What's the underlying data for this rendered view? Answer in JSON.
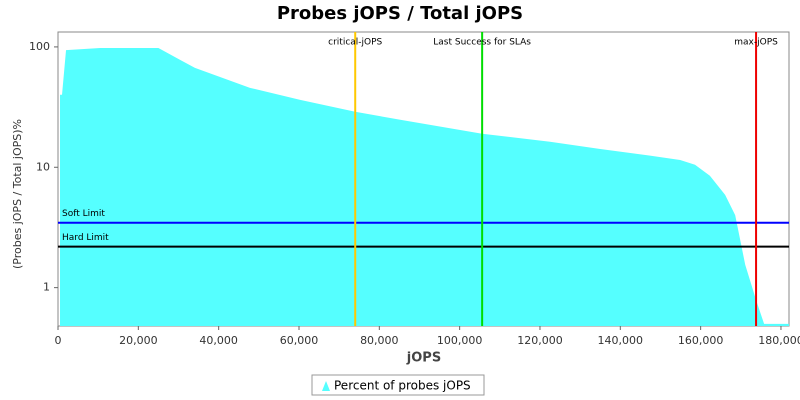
{
  "chart_data": {
    "type": "area",
    "title": "Probes jOPS / Total jOPS",
    "x_label": "jOPS",
    "y_label": "(Probes jOPS / Total jOPS)%",
    "log_y": true,
    "xlim": [
      0,
      182000
    ],
    "ylim": [
      0.48,
      133
    ],
    "xticks": [
      {
        "value": 0,
        "label": "0"
      },
      {
        "value": 20000,
        "label": "20,000"
      },
      {
        "value": 40000,
        "label": "40,000"
      },
      {
        "value": 60000,
        "label": "60,000"
      },
      {
        "value": 80000,
        "label": "80,000"
      },
      {
        "value": 100000,
        "label": "100,000"
      },
      {
        "value": 120000,
        "label": "120,000"
      },
      {
        "value": 140000,
        "label": "140,000"
      },
      {
        "value": 160000,
        "label": "160,000"
      },
      {
        "value": 180000,
        "label": "180,000"
      }
    ],
    "yticks": [
      1,
      10,
      100
    ],
    "series": [
      {
        "name": "Percent of probes jOPS",
        "color": "#55ffff",
        "x": [
          500,
          1000,
          2000,
          10500,
          25000,
          30400,
          34100,
          47800,
          60300,
          74000,
          85200,
          105600,
          122500,
          135000,
          147400,
          154900,
          158600,
          162300,
          166100,
          168600,
          171100,
          173800,
          175800,
          182000
        ],
        "values": [
          40,
          40,
          94,
          98,
          98,
          78,
          67,
          45.7,
          36.3,
          28.9,
          24.8,
          19,
          16.3,
          14.2,
          12.5,
          11.5,
          10.5,
          8.5,
          5.9,
          4.0,
          1.55,
          0.79,
          0.5,
          0.5
        ]
      }
    ],
    "vertical_lines": [
      {
        "label": "critical-jOPS",
        "value": 74000,
        "color": "#ffc800"
      },
      {
        "label": "Last Success for SLAs",
        "value": 105600,
        "color": "#00dd00"
      },
      {
        "label": "max-jOPS",
        "value": 173800,
        "color": "#ee0000"
      }
    ],
    "horizontal_lines": [
      {
        "label": "Soft Limit",
        "value": 3.46,
        "color": "#0000ff"
      },
      {
        "label": "Hard Limit",
        "value": 2.19,
        "color": "#000000"
      }
    ]
  }
}
